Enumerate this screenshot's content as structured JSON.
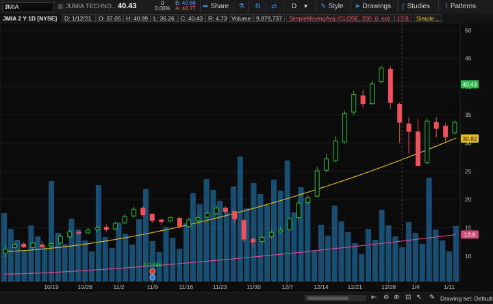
{
  "toolbar": {
    "symbol": "JMIA",
    "company": "JUMIA TECHNO...",
    "last": "40.43",
    "change": "0",
    "change_pct": "0.00%",
    "bid": "B: 40.66",
    "ask": "A: 40.77",
    "share_label": "Share",
    "period": "D",
    "style_label": "Style",
    "drawings_label": "Drawings",
    "studies_label": "Studies",
    "patterns_label": "Patterns"
  },
  "infobar": {
    "title": "JMIA 2 Y 1D [NYSE]",
    "date": "D: 1/12/21",
    "open": "O: 37.05",
    "high": "H: 40.99",
    "low": "L: 36.26",
    "close": "C: 40.43",
    "range": "R: 4.73",
    "volume_label": "Volume",
    "volume_value": "9,879,737",
    "sma_label": "SimpleMovingAvg (CLOSE, 200, 0, no)",
    "sma_value": "13.8",
    "sma2_label": "Simple..."
  },
  "chart_data": {
    "type": "candlestick",
    "symbol": "JMIA",
    "y_ticks": [
      10,
      15,
      20,
      25,
      30,
      35,
      40,
      45,
      50
    ],
    "ylim": [
      5.5,
      51
    ],
    "x_labels": [
      "10/19",
      "10/26",
      "11/2",
      "11/9",
      "11/16",
      "11/23",
      "11/30",
      "12/7",
      "12/14",
      "12/21",
      "12/28",
      "1/4",
      "1/11"
    ],
    "x_label_index": [
      7,
      12,
      17,
      22,
      27,
      32,
      37,
      42,
      47,
      52,
      57,
      61,
      66
    ],
    "candles": [
      [
        10.5,
        11.2,
        9.9,
        11.8
      ],
      [
        11.5,
        12.0,
        11.3,
        12.4
      ],
      [
        12.1,
        11.6,
        11.4,
        12.5
      ],
      [
        11.5,
        12.3,
        11.2,
        12.6
      ],
      [
        12.0,
        11.6,
        11.5,
        12.6
      ],
      [
        11.8,
        12.2,
        11.5,
        12.5
      ],
      [
        12.3,
        13.5,
        12.1,
        13.8
      ],
      [
        13.4,
        14.3,
        13.2,
        14.8
      ],
      [
        14.2,
        14.0,
        13.7,
        14.6
      ],
      [
        14.1,
        14.6,
        13.9,
        15.0
      ],
      [
        14.7,
        15.0,
        14.2,
        15.4
      ],
      [
        15.1,
        14.7,
        14.3,
        15.6
      ],
      [
        14.8,
        15.8,
        14.6,
        16.1
      ],
      [
        15.9,
        17.0,
        15.6,
        17.4
      ],
      [
        17.1,
        18.3,
        16.8,
        18.7
      ],
      [
        18.5,
        17.3,
        17.0,
        18.8
      ],
      [
        17.4,
        16.3,
        15.9,
        17.6
      ],
      [
        16.4,
        16.1,
        15.5,
        16.6
      ],
      [
        16.2,
        16.8,
        16.0,
        17.0
      ],
      [
        16.7,
        15.3,
        14.9,
        16.9
      ],
      [
        15.2,
        16.4,
        15.0,
        16.8
      ],
      [
        16.3,
        16.8,
        16.0,
        17.0
      ],
      [
        16.9,
        17.6,
        16.7,
        17.9
      ],
      [
        17.5,
        18.5,
        17.3,
        18.9
      ],
      [
        18.5,
        17.9,
        17.6,
        18.8
      ],
      [
        17.9,
        16.6,
        15.9,
        18.0
      ],
      [
        16.3,
        13.0,
        12.5,
        16.5
      ],
      [
        13.0,
        12.5,
        11.5,
        13.4
      ],
      [
        12.6,
        13.3,
        12.3,
        13.6
      ],
      [
        13.4,
        14.2,
        13.1,
        14.6
      ],
      [
        14.3,
        14.6,
        14.0,
        15.2
      ],
      [
        14.7,
        16.6,
        14.6,
        17.0
      ],
      [
        16.8,
        19.4,
        16.5,
        19.8
      ],
      [
        19.5,
        20.3,
        19.2,
        20.8
      ],
      [
        20.6,
        25.1,
        20.4,
        25.8
      ],
      [
        25.2,
        27.2,
        24.9,
        28.1
      ],
      [
        26.9,
        30.4,
        26.6,
        31.3
      ],
      [
        30.2,
        35.2,
        29.9,
        35.8
      ],
      [
        35.5,
        38.6,
        35.0,
        39.3
      ],
      [
        38.4,
        37.0,
        36.3,
        39.4
      ],
      [
        37.0,
        40.5,
        36.8,
        41.1
      ],
      [
        40.9,
        43.3,
        40.5,
        43.8
      ],
      [
        43.1,
        37.2,
        36.1,
        43.6
      ],
      [
        36.9,
        33.7,
        30.0,
        37.2
      ],
      [
        33.4,
        32.1,
        28.2,
        34.6
      ],
      [
        32.0,
        26.0,
        25.9,
        34.3
      ],
      [
        26.6,
        33.9,
        26.3,
        34.4
      ],
      [
        33.7,
        32.6,
        31.0,
        34.6
      ],
      [
        33.0,
        31.1,
        30.3,
        33.6
      ],
      [
        31.8,
        33.7,
        31.5,
        34.0
      ]
    ],
    "sma_200_last": 13.8,
    "sma_50_last": 30.82,
    "last_price": 40.43,
    "annotation": "$-0.595",
    "colors": {
      "up": "#23c23b",
      "down": "#f0505a",
      "volume": "#1a5a85",
      "sma_200": "#e0508a",
      "sma_50": "#e8c21a",
      "last_price_tag": "#2dbe4a",
      "sma_50_tag": "#e8c21a",
      "sma_200_tag": "#d34a7a"
    }
  },
  "bottom": {
    "drawing_set": "Drawing set: Default"
  }
}
